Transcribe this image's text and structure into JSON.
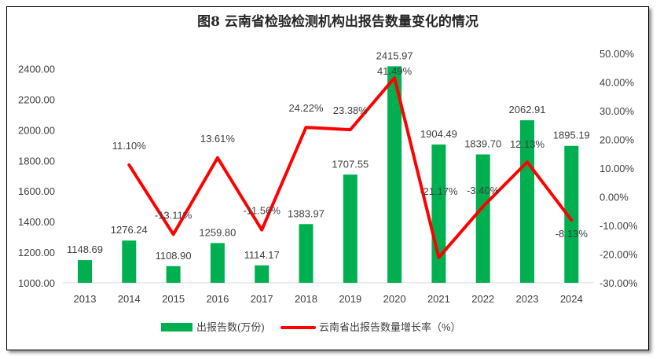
{
  "chart_data": {
    "type": "bar+line",
    "title": "图8  云南省检验检测机构出报告数量变化的情况",
    "categories": [
      "2013",
      "2014",
      "2015",
      "2016",
      "2017",
      "2018",
      "2019",
      "2020",
      "2021",
      "2022",
      "2023",
      "2024"
    ],
    "series": [
      {
        "name": "出报告数(万份)",
        "type": "bar",
        "axis": "left",
        "color": "#00b050",
        "values": [
          1148.69,
          1276.24,
          1108.9,
          1259.8,
          1114.17,
          1383.97,
          1707.55,
          2415.97,
          1904.49,
          1839.7,
          2062.91,
          1895.19
        ],
        "labels": [
          "1148.69",
          "1276.24",
          "1108.90",
          "1259.80",
          "1114.17",
          "1383.97",
          "1707.55",
          "2415.97",
          "1904.49",
          "1839.70",
          "2062.91",
          "1895.19"
        ]
      },
      {
        "name": "云南省出报告数量增长率（%）",
        "type": "line",
        "axis": "right",
        "color": "#ff0000",
        "values": [
          null,
          11.1,
          -13.11,
          13.61,
          -11.56,
          24.22,
          23.38,
          41.49,
          -21.17,
          -3.4,
          12.13,
          -8.13
        ],
        "labels": [
          "",
          "11.10%",
          "-13.11%",
          "13.61%",
          "-11.56%",
          "24.22%",
          "23.38%",
          "41.49%",
          "-21.17%",
          "-3.40%",
          "12.13%",
          "-8.13%"
        ]
      }
    ],
    "left_axis": {
      "ylim": [
        1000,
        2500
      ],
      "ticks": [
        "1000.00",
        "1200.00",
        "1400.00",
        "1600.00",
        "1800.00",
        "2000.00",
        "2200.00",
        "2400.00"
      ]
    },
    "right_axis": {
      "ylim": [
        -30,
        50
      ],
      "ticks": [
        "-30.00%",
        "-20.00%",
        "-10.00%",
        "0.00%",
        "10.00%",
        "20.00%",
        "30.00%",
        "40.00%",
        "50.00%"
      ]
    },
    "grid": false,
    "legend": "bottom"
  }
}
